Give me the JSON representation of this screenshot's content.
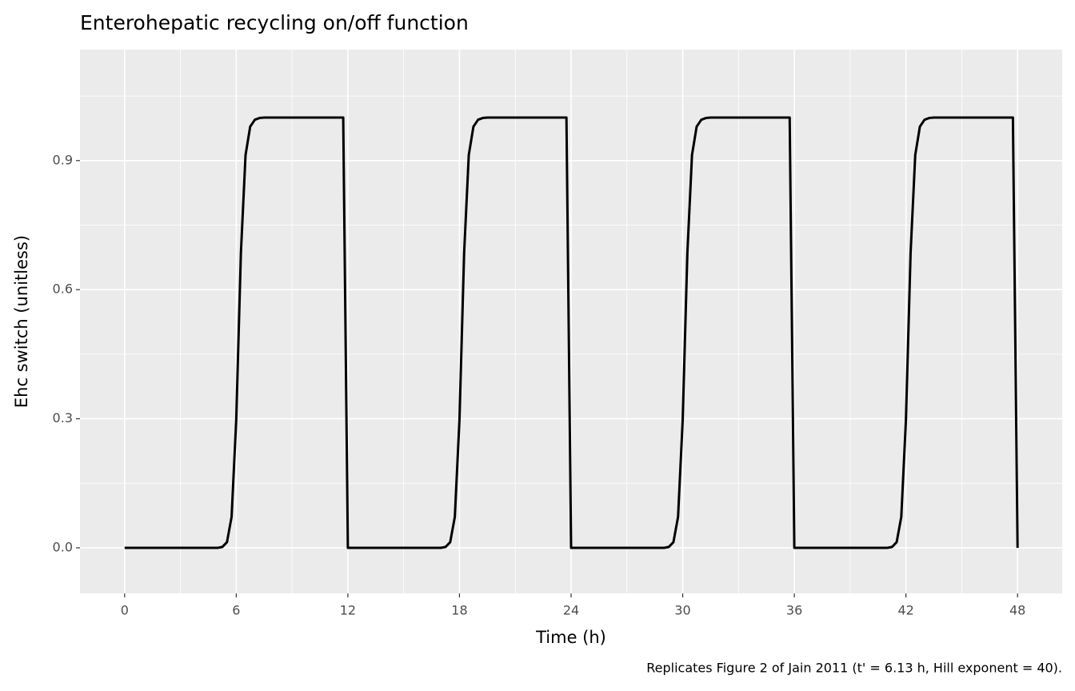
{
  "chart_data": {
    "type": "line",
    "title": "Enterohepatic recycling on/off function",
    "x_label": "Time (h)",
    "y_label": "Ehc switch (unitless)",
    "caption": "Replicates Figure 2 of Jain 2011 (t' = 6.13 h, Hill exponent = 40).",
    "x": [
      0,
      5,
      5.25,
      5.5,
      5.75,
      6,
      6.25,
      6.5,
      6.75,
      7,
      7.25,
      7.5,
      8,
      11.75,
      12,
      17,
      17.25,
      17.5,
      17.75,
      18,
      18.25,
      18.5,
      18.75,
      19,
      19.25,
      19.5,
      20,
      23.75,
      24,
      29,
      29.25,
      29.5,
      29.75,
      30,
      30.25,
      30.5,
      30.75,
      31,
      31.25,
      31.5,
      32,
      35.75,
      36,
      41,
      41.25,
      41.5,
      41.75,
      42,
      42.25,
      42.5,
      42.75,
      43,
      43.25,
      43.5,
      44,
      47.75,
      48
    ],
    "series": [
      {
        "color": "#000000",
        "values": [
          0,
          0,
          0.002,
          0.013,
          0.072,
          0.298,
          0.685,
          0.913,
          0.979,
          0.995,
          0.999,
          1,
          1,
          1,
          0,
          0,
          0.002,
          0.013,
          0.072,
          0.298,
          0.685,
          0.913,
          0.979,
          0.995,
          0.999,
          1,
          1,
          1,
          0,
          0,
          0.002,
          0.013,
          0.072,
          0.298,
          0.685,
          0.913,
          0.979,
          0.995,
          0.999,
          1,
          1,
          1,
          0,
          0,
          0.002,
          0.013,
          0.072,
          0.298,
          0.685,
          0.913,
          0.979,
          0.995,
          0.999,
          1,
          1,
          1,
          0
        ]
      }
    ],
    "xlim": [
      -2.4,
      50.4
    ],
    "xticks": [
      0,
      6,
      12,
      18,
      24,
      30,
      36,
      42,
      48
    ],
    "ylim": [
      -0.106,
      1.158
    ],
    "yticks": [
      {
        "value": 0,
        "label": "0.0"
      },
      0.3,
      0.6,
      0.9
    ],
    "grid": true
  }
}
